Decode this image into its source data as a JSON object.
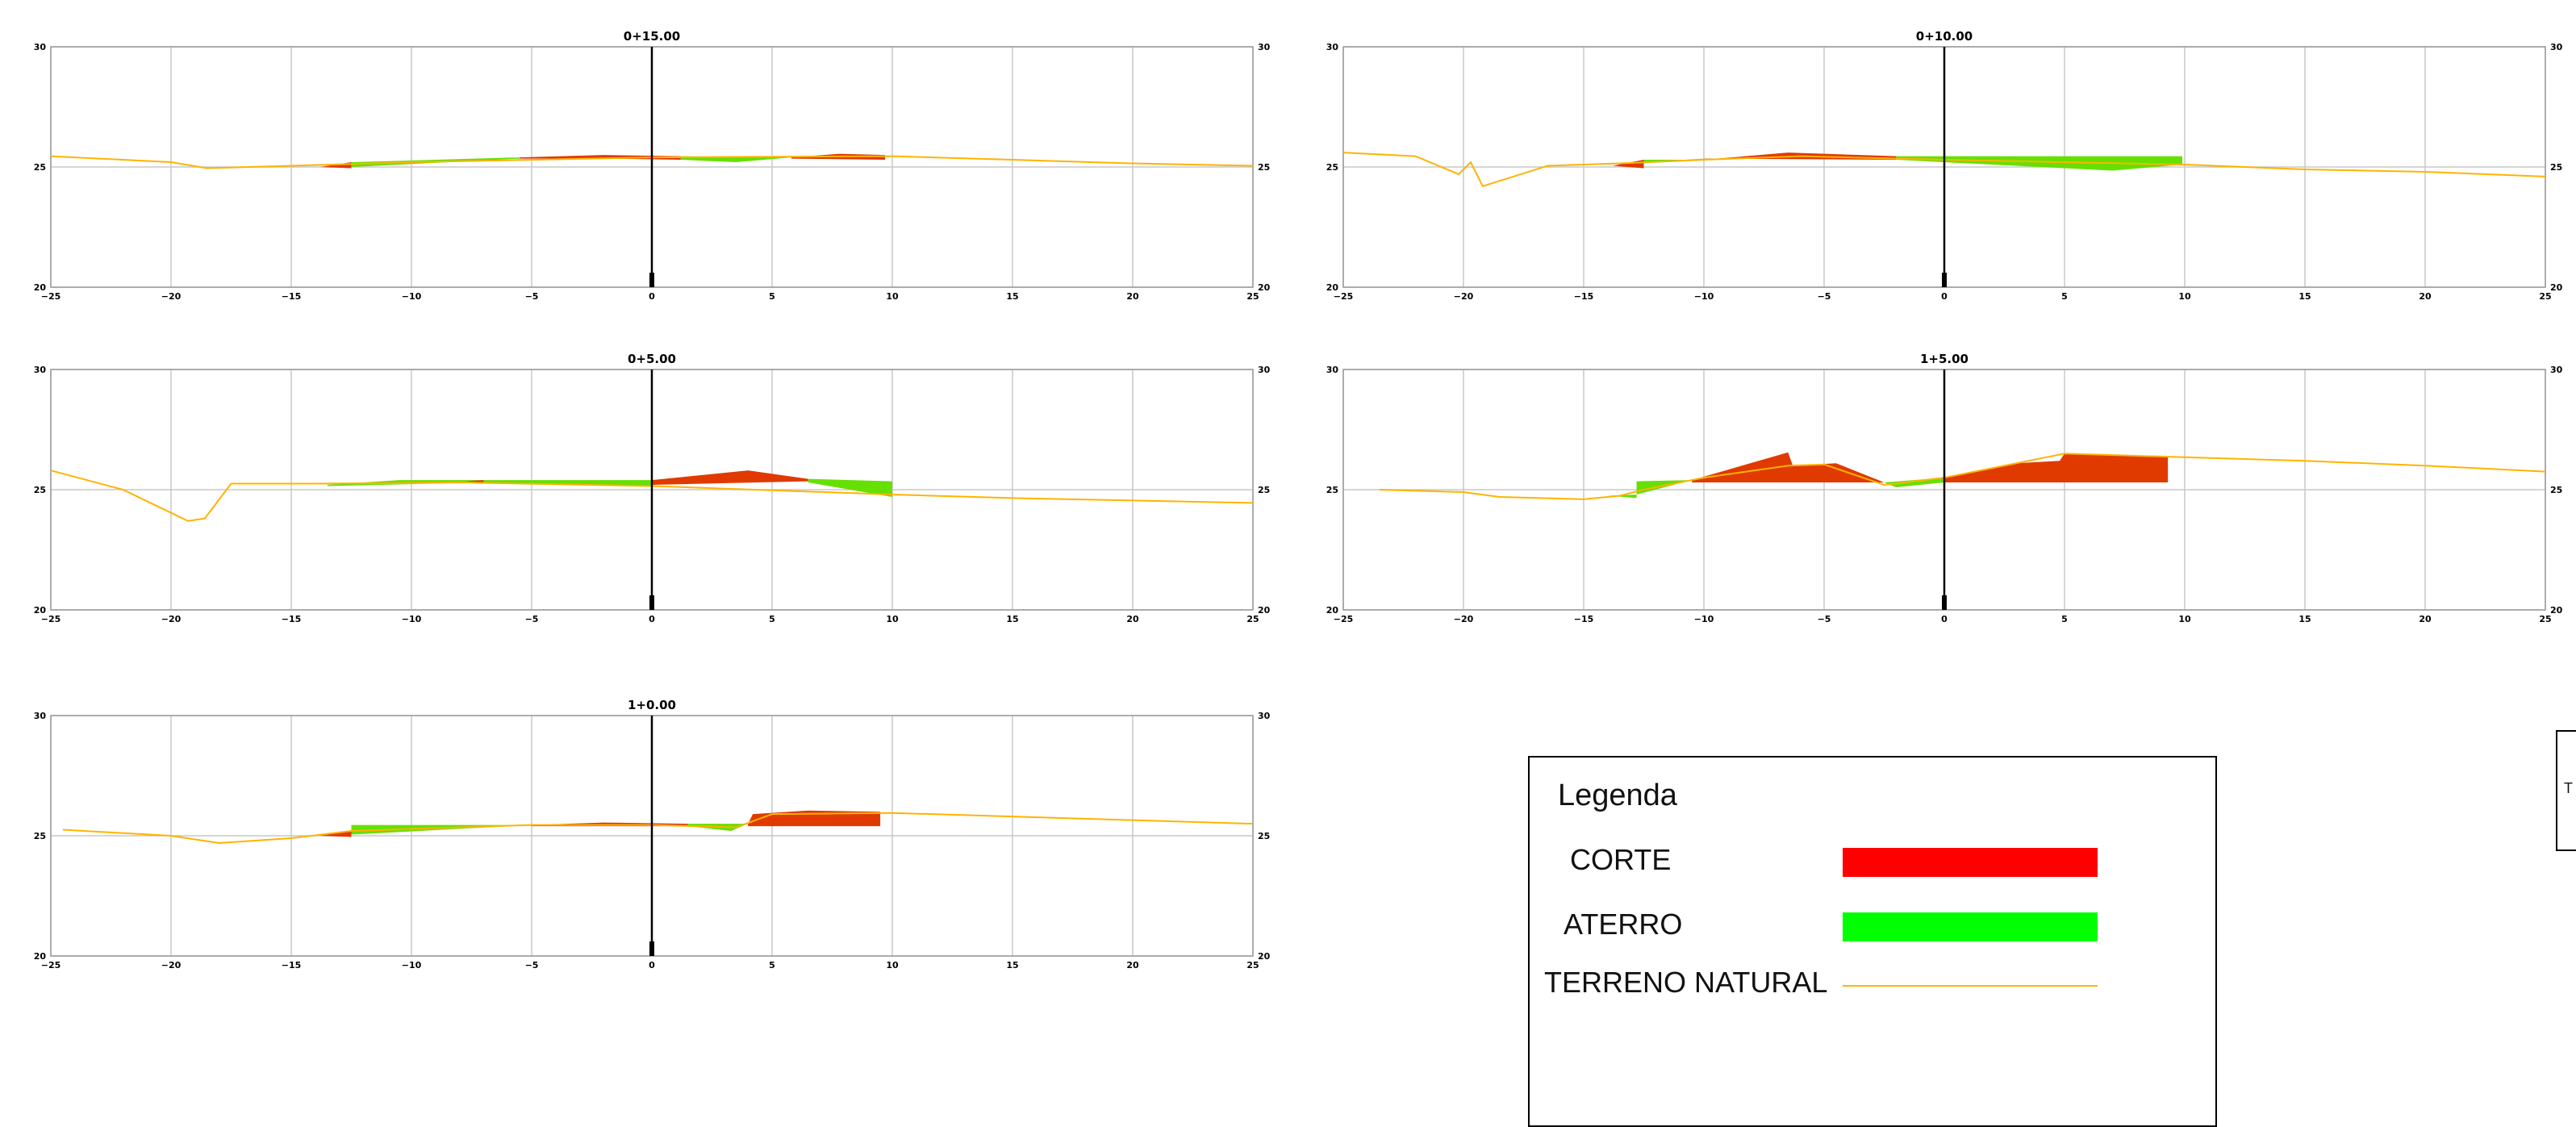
{
  "chart_data": [
    {
      "type": "area",
      "title": "0+15.00",
      "xlim": [
        -25,
        25
      ],
      "ylim": [
        20,
        30
      ],
      "x_ticks": [
        "−25",
        "−20",
        "−15",
        "−10",
        "−5",
        "0",
        "5",
        "10",
        "15",
        "20",
        "25"
      ],
      "y_ticks": [
        "20",
        "25",
        "30"
      ],
      "grid": true,
      "terreno_natural": [
        [
          -25,
          25.45
        ],
        [
          -20,
          25.2
        ],
        [
          -18.5,
          24.95
        ],
        [
          -15,
          25.05
        ],
        [
          -10,
          25.2
        ],
        [
          0,
          25.4
        ],
        [
          10,
          25.45
        ],
        [
          15,
          25.3
        ],
        [
          20,
          25.15
        ],
        [
          25,
          25.05
        ]
      ],
      "corte": [
        [
          [
            -13.8,
            25.0
          ],
          [
            -12.5,
            25.2
          ],
          [
            -12.5,
            24.95
          ]
        ],
        [
          [
            -5.5,
            25.4
          ],
          [
            -2,
            25.5
          ],
          [
            1.2,
            25.45
          ],
          [
            1.2,
            25.3
          ],
          [
            -2,
            25.35
          ],
          [
            -5.5,
            25.35
          ]
        ],
        [
          [
            5.8,
            25.4
          ],
          [
            7.8,
            25.55
          ],
          [
            9.7,
            25.5
          ],
          [
            9.7,
            25.3
          ],
          [
            5.8,
            25.35
          ]
        ]
      ],
      "aterro": [
        [
          [
            -12.5,
            25.2
          ],
          [
            -5.5,
            25.4
          ],
          [
            -5.5,
            25.35
          ],
          [
            -12.5,
            25.0
          ]
        ],
        [
          [
            1.2,
            25.45
          ],
          [
            5.8,
            25.4
          ],
          [
            3.5,
            25.2
          ],
          [
            1.2,
            25.3
          ]
        ]
      ],
      "axis_line_x": 0
    },
    {
      "type": "area",
      "title": "0+10.00",
      "xlim": [
        -25,
        25
      ],
      "ylim": [
        20,
        30
      ],
      "x_ticks": [
        "−25",
        "−20",
        "−15",
        "−10",
        "−5",
        "0",
        "5",
        "10",
        "15",
        "20",
        "25"
      ],
      "y_ticks": [
        "20",
        "25",
        "30"
      ],
      "grid": true,
      "terreno_natural": [
        [
          -25,
          25.6
        ],
        [
          -22,
          25.45
        ],
        [
          -20.2,
          24.7
        ],
        [
          -19.7,
          25.2
        ],
        [
          -19.2,
          24.2
        ],
        [
          -16.5,
          25.05
        ],
        [
          -13.5,
          25.15
        ],
        [
          -10,
          25.3
        ],
        [
          -6,
          25.45
        ],
        [
          0,
          25.3
        ],
        [
          10,
          25.1
        ],
        [
          15,
          24.9
        ],
        [
          20,
          24.8
        ],
        [
          25,
          24.6
        ]
      ],
      "corte": [
        [
          [
            -13.8,
            25.05
          ],
          [
            -12.5,
            25.3
          ],
          [
            -12.5,
            24.95
          ]
        ],
        [
          [
            -10,
            25.3
          ],
          [
            -6.5,
            25.6
          ],
          [
            -2,
            25.45
          ],
          [
            -2,
            25.3
          ],
          [
            -10,
            25.35
          ]
        ]
      ],
      "aterro": [
        [
          [
            -12.5,
            25.3
          ],
          [
            -10,
            25.3
          ],
          [
            -10,
            25.35
          ],
          [
            -12.5,
            25.2
          ]
        ],
        [
          [
            -2,
            25.45
          ],
          [
            9.9,
            25.45
          ],
          [
            9.9,
            25.1
          ],
          [
            7,
            24.85
          ],
          [
            2,
            25.1
          ],
          [
            -2,
            25.3
          ]
        ]
      ],
      "axis_line_x": 0
    },
    {
      "type": "area",
      "title": "0+5.00",
      "xlim": [
        -25,
        25
      ],
      "ylim": [
        20,
        30
      ],
      "x_ticks": [
        "−25",
        "−20",
        "−15",
        "−10",
        "−5",
        "0",
        "5",
        "10",
        "15",
        "20",
        "25"
      ],
      "y_ticks": [
        "20",
        "25",
        "30"
      ],
      "grid": true,
      "terreno_natural": [
        [
          -25,
          25.8
        ],
        [
          -22,
          25.0
        ],
        [
          -19.3,
          23.7
        ],
        [
          -18.6,
          23.8
        ],
        [
          -17.5,
          25.25
        ],
        [
          -14,
          25.25
        ],
        [
          -8,
          25.3
        ],
        [
          0,
          25.15
        ],
        [
          10,
          24.8
        ],
        [
          15,
          24.65
        ],
        [
          20,
          24.55
        ],
        [
          25,
          24.45
        ]
      ],
      "corte": [
        [
          [
            -7.8,
            25.35
          ],
          [
            -7,
            25.4
          ],
          [
            -7,
            25.3
          ]
        ],
        [
          [
            0,
            25.4
          ],
          [
            4,
            25.8
          ],
          [
            6.5,
            25.45
          ],
          [
            6.5,
            25.35
          ],
          [
            0,
            25.2
          ]
        ]
      ],
      "aterro": [
        [
          [
            -13.5,
            25.2
          ],
          [
            -10.5,
            25.4
          ],
          [
            0,
            25.4
          ],
          [
            0,
            25.15
          ],
          [
            -7,
            25.3
          ],
          [
            -13.5,
            25.15
          ]
        ],
        [
          [
            6.5,
            25.45
          ],
          [
            10,
            25.35
          ],
          [
            10,
            24.7
          ],
          [
            6.5,
            25.3
          ]
        ]
      ],
      "axis_line_x": 0
    },
    {
      "type": "area",
      "title": "1+5.00",
      "xlim": [
        -25,
        25
      ],
      "ylim": [
        20,
        30
      ],
      "x_ticks": [
        "−25",
        "−20",
        "−15",
        "−10",
        "−5",
        "0",
        "5",
        "10",
        "15",
        "20",
        "25"
      ],
      "y_ticks": [
        "20",
        "25",
        "30"
      ],
      "grid": true,
      "terreno_natural": [
        [
          -23.5,
          25.0
        ],
        [
          -20,
          24.9
        ],
        [
          -18.5,
          24.7
        ],
        [
          -15,
          24.6
        ],
        [
          -13.5,
          24.75
        ],
        [
          -12.5,
          25.0
        ],
        [
          -10,
          25.5
        ],
        [
          -6.5,
          26.0
        ],
        [
          -5,
          26.05
        ],
        [
          -2.5,
          25.2
        ],
        [
          0,
          25.5
        ],
        [
          3,
          26.1
        ],
        [
          5,
          26.5
        ],
        [
          10,
          26.35
        ],
        [
          15,
          26.2
        ],
        [
          20,
          26.0
        ],
        [
          25,
          25.75
        ]
      ],
      "corte": [
        [
          [
            -10.5,
            25.4
          ],
          [
            -6.5,
            26.55
          ],
          [
            -6.3,
            26.0
          ],
          [
            -4.5,
            26.1
          ],
          [
            -2.5,
            25.3
          ],
          [
            -10.5,
            25.3
          ]
        ],
        [
          [
            0,
            25.5
          ],
          [
            3,
            26.1
          ],
          [
            4.8,
            26.2
          ],
          [
            5,
            26.5
          ],
          [
            9.3,
            26.35
          ],
          [
            9.3,
            25.3
          ],
          [
            0,
            25.3
          ]
        ]
      ],
      "aterro": [
        [
          [
            -12.8,
            25.35
          ],
          [
            -10.5,
            25.4
          ],
          [
            -12.8,
            24.8
          ]
        ],
        [
          [
            -14,
            24.75
          ],
          [
            -12.8,
            24.8
          ],
          [
            -12.8,
            24.65
          ]
        ],
        [
          [
            -2.5,
            25.3
          ],
          [
            0,
            25.5
          ],
          [
            0,
            25.3
          ],
          [
            -2,
            25.1
          ]
        ]
      ],
      "axis_line_x": 0
    },
    {
      "type": "area",
      "title": "1+0.00",
      "xlim": [
        -25,
        25
      ],
      "ylim": [
        20,
        30
      ],
      "x_ticks": [
        "−25",
        "−20",
        "−15",
        "−10",
        "−5",
        "0",
        "5",
        "10",
        "15",
        "20",
        "25"
      ],
      "y_ticks": [
        "20",
        "25",
        "30"
      ],
      "grid": true,
      "terreno_natural": [
        [
          -24.5,
          25.25
        ],
        [
          -20,
          25.0
        ],
        [
          -18,
          24.7
        ],
        [
          -15,
          24.9
        ],
        [
          -12.5,
          25.2
        ],
        [
          -5,
          25.45
        ],
        [
          0,
          25.45
        ],
        [
          3.5,
          25.35
        ],
        [
          5,
          25.9
        ],
        [
          10,
          25.95
        ],
        [
          15,
          25.8
        ],
        [
          20,
          25.65
        ],
        [
          25,
          25.5
        ]
      ],
      "corte": [
        [
          [
            -13.8,
            25.0
          ],
          [
            -12.5,
            25.2
          ],
          [
            -12.5,
            24.95
          ]
        ],
        [
          [
            -5,
            25.45
          ],
          [
            -2,
            25.55
          ],
          [
            1.5,
            25.5
          ],
          [
            1.5,
            25.4
          ],
          [
            -5,
            25.4
          ]
        ],
        [
          [
            4,
            25.5
          ],
          [
            4.2,
            25.9
          ],
          [
            6.5,
            26.05
          ],
          [
            9.5,
            26.0
          ],
          [
            9.5,
            25.4
          ],
          [
            4,
            25.4
          ]
        ]
      ],
      "aterro": [
        [
          [
            -12.5,
            25.45
          ],
          [
            -5,
            25.45
          ],
          [
            -12.5,
            25.05
          ]
        ],
        [
          [
            1.5,
            25.5
          ],
          [
            4,
            25.5
          ],
          [
            3.3,
            25.2
          ],
          [
            1.5,
            25.4
          ]
        ]
      ],
      "axis_line_x": 0
    }
  ],
  "legend": {
    "title": "Legenda",
    "items": [
      {
        "label": "CORTE",
        "color": "#ff0000",
        "kind": "fill"
      },
      {
        "label": "ATERRO",
        "color": "#00ff00",
        "kind": "fill"
      },
      {
        "label": "TERRENO NATURAL",
        "color": "#ffb300",
        "kind": "line"
      }
    ]
  },
  "colors": {
    "corte": "#e03a00",
    "aterro": "#66e000",
    "terreno": "#ffb300",
    "grid": "#c8c8c8"
  },
  "edge_box": {
    "label": "T"
  }
}
